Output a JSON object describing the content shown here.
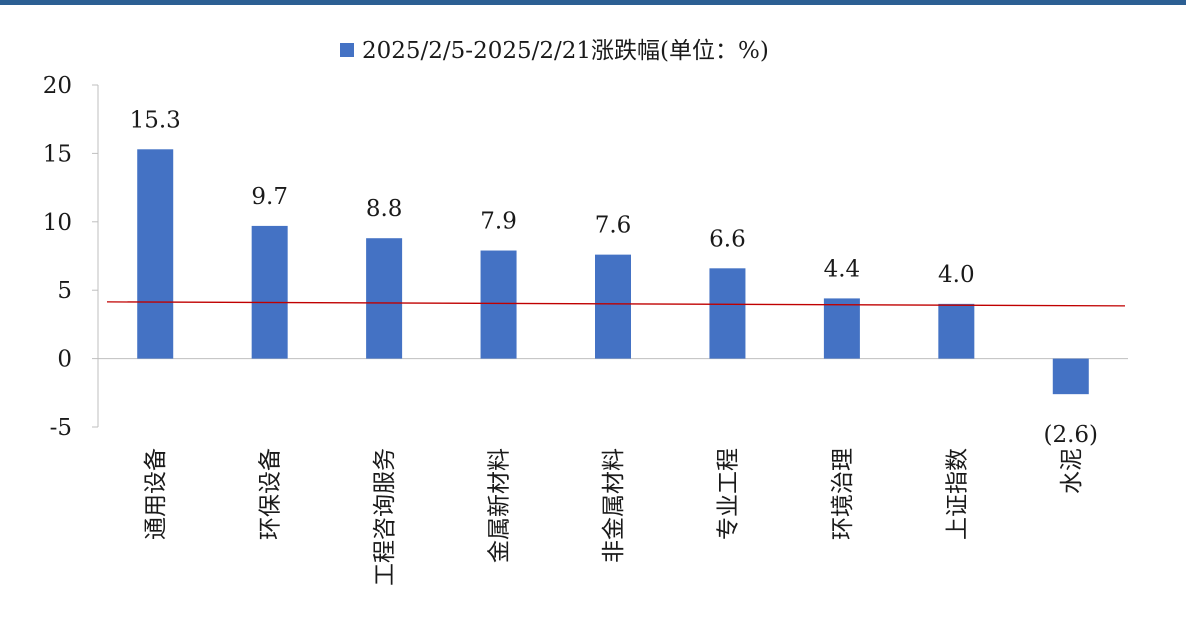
{
  "chart_data": {
    "type": "bar",
    "categories": [
      "通用设备",
      "环保设备",
      "工程咨询服务",
      "金属新材料",
      "非金属材料",
      "专业工程",
      "环境治理",
      "上证指数",
      "水泥"
    ],
    "series": [
      {
        "name": "2025/2/5-2025/2/21涨跌幅(单位：%)",
        "values": [
          15.3,
          9.7,
          8.8,
          7.9,
          7.6,
          6.6,
          4.4,
          4.0,
          -2.6
        ],
        "data_labels": [
          "15.3",
          "9.7",
          "8.8",
          "7.9",
          "7.6",
          "6.6",
          "4.4",
          "4.0",
          "(2.6)"
        ]
      }
    ],
    "reference_line": {
      "value": 4.0,
      "color": "#c00000"
    },
    "ylim": [
      -5,
      20
    ],
    "yticks": [
      20,
      15,
      10,
      5,
      0,
      -5
    ],
    "ytick_labels": [
      "20",
      "15",
      "10",
      "5",
      "0",
      "-5"
    ],
    "xlabel": "",
    "ylabel": "",
    "grid": false,
    "legend_position": "top",
    "colors": {
      "bar": "#4472c4",
      "negative_label": "#e00000",
      "label": "#1a1a1a",
      "axis": "#bfbfbf",
      "header_bar": "#2c5f93"
    }
  }
}
